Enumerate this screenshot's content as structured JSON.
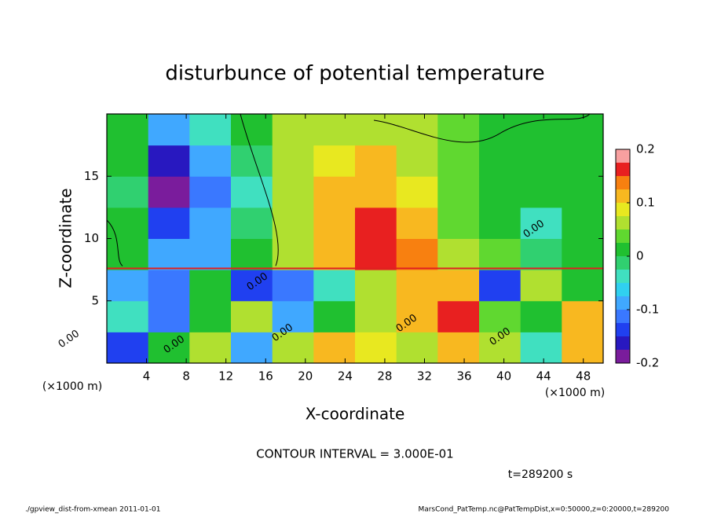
{
  "chart_data": {
    "type": "heatmap",
    "title": "disturbunce of potential temperature",
    "xlabel": "X-coordinate",
    "ylabel": "Z-coordinate",
    "x_unit_left": "(×1000 m)",
    "x_unit_right": "(×1000 m)",
    "contour_interval": "CONTOUR INTERVAL = 3.000E-01",
    "time_label": "t=289200 s",
    "footer_left": "./gpview_dist-from-xmean  2011-01-01",
    "footer_right": "MarsCond_PatTemp.nc@PatTempDist,x=0:50000,z=0:20000,t=289200",
    "contour_labels": [
      "0.00",
      "0.00",
      "0.00",
      "0.00",
      "0.00",
      "0.00",
      "0.00"
    ],
    "xlim": [
      0,
      50
    ],
    "xticks": [
      4,
      8,
      12,
      16,
      20,
      24,
      28,
      32,
      36,
      40,
      44,
      48
    ],
    "ylim": [
      0,
      20
    ],
    "yticks": [
      5,
      10,
      15
    ],
    "xbins": [
      0,
      4.17,
      8.33,
      12.5,
      16.67,
      20.83,
      25,
      29.17,
      33.33,
      37.5,
      41.67,
      45.83,
      50
    ],
    "ybins": [
      0,
      2.5,
      5,
      7.5,
      10,
      12.5,
      15,
      17.5,
      20
    ],
    "z": [
      [
        -0.15,
        0,
        0.05,
        -0.1,
        0.05,
        0.1,
        0.08,
        0.05,
        0.1,
        0.05,
        -0.05,
        0.1
      ],
      [
        -0.05,
        -0.12,
        0,
        0.05,
        -0.1,
        0.02,
        0.05,
        0.1,
        0.15,
        0.03,
        0,
        0.1
      ],
      [
        -0.1,
        -0.12,
        0,
        -0.15,
        -0.12,
        -0.05,
        0.05,
        0.12,
        0.1,
        -0.15,
        0.05,
        0
      ],
      [
        0,
        -0.1,
        -0.08,
        0,
        0.06,
        0.12,
        0.16,
        0.13,
        0.06,
        0.03,
        -0.02,
        0
      ],
      [
        0,
        -0.15,
        -0.1,
        -0.02,
        0.05,
        0.1,
        0.15,
        0.1,
        0.04,
        0.02,
        -0.03,
        0
      ],
      [
        -0.02,
        -0.18,
        -0.12,
        -0.03,
        0.05,
        0.1,
        0.12,
        0.08,
        0.04,
        0.02,
        0,
        0
      ],
      [
        0,
        -0.17,
        -0.1,
        -0.02,
        0.05,
        0.08,
        0.1,
        0.07,
        0.04,
        0.02,
        0,
        0
      ],
      [
        0,
        -0.1,
        -0.05,
        0,
        0.05,
        0.07,
        0.07,
        0.05,
        0.03,
        0.02,
        0,
        0
      ]
    ],
    "colorbar": {
      "levels": [
        -0.2,
        -0.175,
        -0.15,
        -0.125,
        -0.1,
        -0.075,
        -0.05,
        -0.025,
        0,
        0.025,
        0.05,
        0.075,
        0.1,
        0.125,
        0.15,
        0.175,
        0.2
      ],
      "colors": [
        "#7a1c9c",
        "#2818c0",
        "#2040f0",
        "#3a78ff",
        "#40a8ff",
        "#30d0f0",
        "#40e0c0",
        "#30d070",
        "#20c030",
        "#60d830",
        "#b0e030",
        "#e8e820",
        "#f8b820",
        "#f88010",
        "#e82020",
        "#f8a0a0"
      ],
      "ticks": [
        -0.2,
        -0.1,
        0,
        0.1,
        0.2
      ]
    }
  }
}
